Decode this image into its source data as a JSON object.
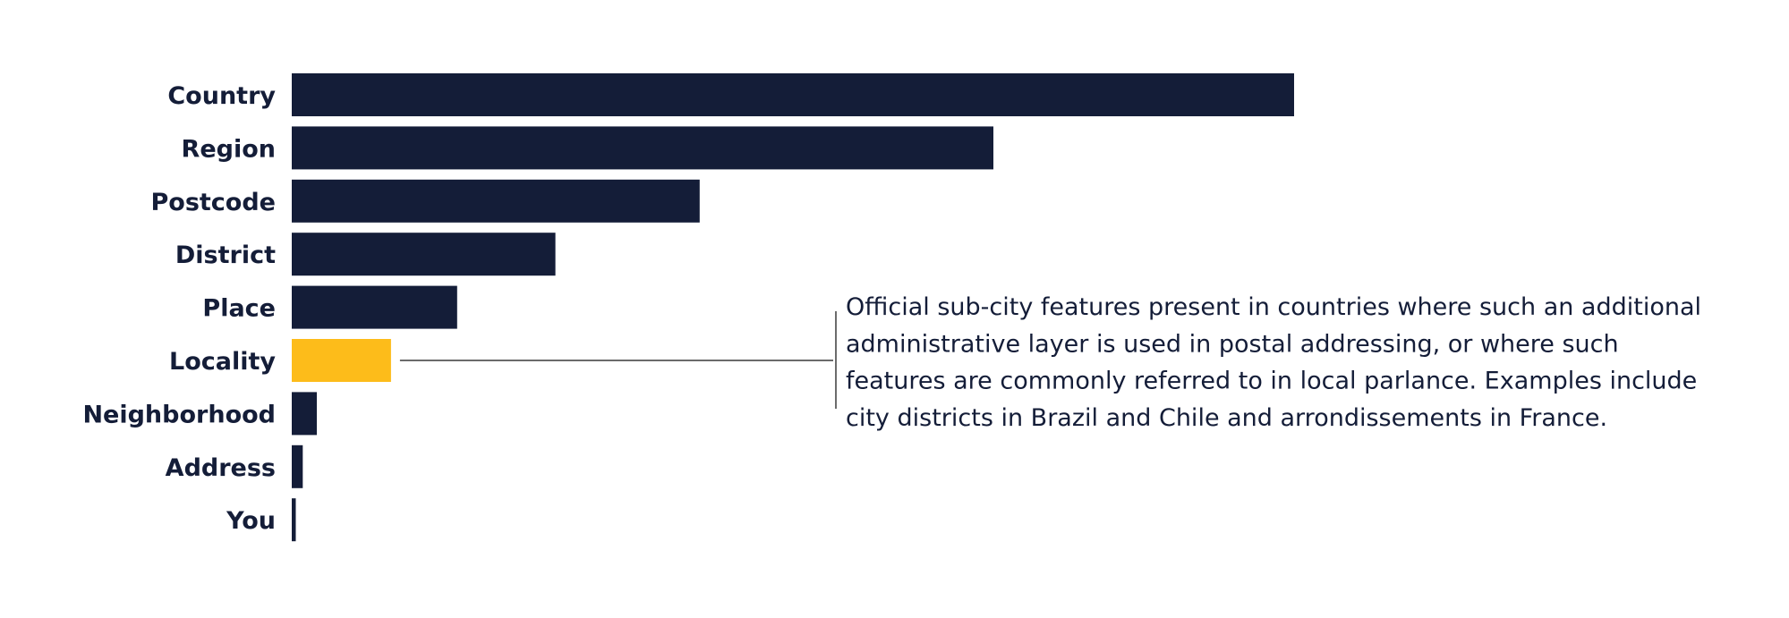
{
  "chart_data": {
    "type": "bar",
    "orientation": "horizontal",
    "categories": [
      "Country",
      "Region",
      "Postcode",
      "District",
      "Place",
      "Locality",
      "Neighborhood",
      "Address",
      "You"
    ],
    "values": [
      100,
      70,
      40.7,
      26.3,
      16.5,
      9.9,
      2.5,
      1.1,
      0.4
    ],
    "highlight": "Locality",
    "grid": false,
    "legend": "none",
    "title": "",
    "xlabel": "",
    "ylabel": "",
    "annotation": {
      "target": "Locality",
      "lines": [
        "Official sub-city features present in countries where such an additional",
        "administrative layer is used in postal addressing, or where such",
        "features are commonly referred to in local parlance. Examples include",
        "city districts in Brazil and Chile and arrondissements in France."
      ]
    },
    "colors": {
      "bar": "#141d38",
      "highlight": "#fdbc1a",
      "text": "#141d38",
      "connector": "#3a3a3a"
    }
  }
}
